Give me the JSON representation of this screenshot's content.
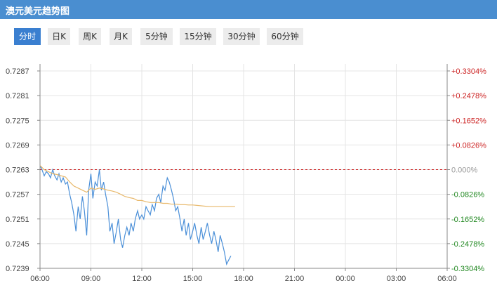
{
  "header": {
    "title": "澳元美元趋势图"
  },
  "tabs": [
    {
      "label": "分时",
      "active": true
    },
    {
      "label": "日K",
      "active": false
    },
    {
      "label": "周K",
      "active": false
    },
    {
      "label": "月K",
      "active": false
    },
    {
      "label": "5分钟",
      "active": false
    },
    {
      "label": "15分钟",
      "active": false
    },
    {
      "label": "30分钟",
      "active": false
    },
    {
      "label": "60分钟",
      "active": false
    }
  ],
  "colors": {
    "header_bg": "#4a8ed0",
    "price_line": "#4a8fd8",
    "avg_line": "#e8b86a",
    "baseline": "#cc2222",
    "positive": "#cc2222",
    "negative": "#228822",
    "neutral": "#999999"
  },
  "chart_data": {
    "type": "line",
    "title": "",
    "xlabel": "",
    "ylabel": "",
    "ylim": [
      0.7239,
      0.7287
    ],
    "grid": true,
    "baseline": 0.7263,
    "x_ticks": [
      "06:00",
      "09:00",
      "12:00",
      "15:00",
      "18:00",
      "21:00",
      "00:00",
      "03:00",
      "06:00"
    ],
    "y_ticks_left": [
      "0.7287",
      "0.7281",
      "0.7275",
      "0.7269",
      "0.7263",
      "0.7257",
      "0.7251",
      "0.7245",
      "0.7239"
    ],
    "y_ticks_right": [
      {
        "label": "+0.3304%",
        "sign": "positive"
      },
      {
        "label": "+0.2478%",
        "sign": "positive"
      },
      {
        "label": "+0.1652%",
        "sign": "positive"
      },
      {
        "label": "+0.0826%",
        "sign": "positive"
      },
      {
        "label": "0.000%",
        "sign": "neutral"
      },
      {
        "label": "-0.0826%",
        "sign": "negative"
      },
      {
        "label": "-0.1652%",
        "sign": "negative"
      },
      {
        "label": "-0.2478%",
        "sign": "negative"
      },
      {
        "label": "-0.3304%",
        "sign": "negative"
      }
    ],
    "series": [
      {
        "key": "price",
        "x": [
          "06:00",
          "06:07",
          "06:15",
          "06:22",
          "06:30",
          "06:37",
          "06:45",
          "06:52",
          "07:00",
          "07:07",
          "07:15",
          "07:22",
          "07:30",
          "07:37",
          "07:45",
          "07:52",
          "08:00",
          "08:07",
          "08:15",
          "08:22",
          "08:30",
          "08:37",
          "08:45",
          "08:52",
          "09:00",
          "09:07",
          "09:15",
          "09:22",
          "09:30",
          "09:37",
          "09:45",
          "09:52",
          "10:00",
          "10:07",
          "10:15",
          "10:22",
          "10:30",
          "10:37",
          "10:45",
          "10:52",
          "11:00",
          "11:07",
          "11:15",
          "11:22",
          "11:30",
          "11:37",
          "11:45",
          "11:52",
          "12:00",
          "12:07",
          "12:15",
          "12:22",
          "12:30",
          "12:37",
          "12:45",
          "12:52",
          "13:00",
          "13:07",
          "13:15",
          "13:22",
          "13:30",
          "13:37",
          "13:45",
          "13:52",
          "14:00",
          "14:07",
          "14:15",
          "14:22",
          "14:30",
          "14:37",
          "14:45",
          "14:52",
          "15:00",
          "15:07",
          "15:15",
          "15:22",
          "15:30",
          "15:37",
          "15:45",
          "15:52",
          "16:00",
          "16:07",
          "16:15",
          "16:22",
          "16:30",
          "16:37",
          "16:45",
          "16:52",
          "17:00",
          "17:07",
          "17:15"
        ],
        "y": [
          0.7264,
          0.7263,
          0.72615,
          0.72625,
          0.7262,
          0.7261,
          0.7263,
          0.72615,
          0.72605,
          0.7262,
          0.726,
          0.7261,
          0.72595,
          0.726,
          0.7257,
          0.7255,
          0.7252,
          0.7248,
          0.7254,
          0.7251,
          0.72565,
          0.7253,
          0.7247,
          0.7258,
          0.7262,
          0.7256,
          0.726,
          0.7259,
          0.7263,
          0.7258,
          0.726,
          0.7257,
          0.7254,
          0.7248,
          0.725,
          0.7245,
          0.7248,
          0.7251,
          0.7246,
          0.7244,
          0.7247,
          0.7249,
          0.7247,
          0.725,
          0.7248,
          0.7251,
          0.7253,
          0.7251,
          0.7252,
          0.7251,
          0.7254,
          0.7253,
          0.7252,
          0.72545,
          0.7253,
          0.7256,
          0.7257,
          0.7255,
          0.7259,
          0.7258,
          0.7261,
          0.726,
          0.7258,
          0.7256,
          0.7253,
          0.7254,
          0.7251,
          0.7248,
          0.7251,
          0.7247,
          0.725,
          0.7246,
          0.7248,
          0.725,
          0.7247,
          0.7245,
          0.7249,
          0.7246,
          0.7248,
          0.725,
          0.7247,
          0.7245,
          0.7248,
          0.7246,
          0.7243,
          0.7247,
          0.7245,
          0.7243,
          0.724,
          0.7241,
          0.7242
        ]
      },
      {
        "key": "average",
        "x": [
          "06:00",
          "06:15",
          "06:30",
          "06:45",
          "07:00",
          "07:15",
          "07:30",
          "07:45",
          "08:00",
          "08:15",
          "08:30",
          "08:45",
          "09:00",
          "09:15",
          "09:30",
          "09:45",
          "10:00",
          "10:15",
          "10:30",
          "10:45",
          "11:00",
          "11:15",
          "11:30",
          "11:45",
          "12:00",
          "12:15",
          "12:30",
          "12:45",
          "13:00",
          "13:15",
          "13:30",
          "13:45",
          "14:00",
          "14:15",
          "14:30",
          "14:45",
          "15:00",
          "15:15",
          "15:30",
          "15:45",
          "16:00",
          "16:15",
          "16:30",
          "16:45",
          "17:00",
          "17:15",
          "17:30"
        ],
        "y": [
          0.7264,
          0.7263,
          0.72625,
          0.7262,
          0.72618,
          0.72615,
          0.72612,
          0.726,
          0.7259,
          0.72585,
          0.7258,
          0.72575,
          0.72585,
          0.72582,
          0.72585,
          0.72583,
          0.7258,
          0.72578,
          0.72575,
          0.7257,
          0.72565,
          0.72562,
          0.7256,
          0.72555,
          0.72555,
          0.72552,
          0.7255,
          0.7255,
          0.7255,
          0.72548,
          0.72548,
          0.72546,
          0.72546,
          0.72545,
          0.72545,
          0.72544,
          0.72544,
          0.72543,
          0.72542,
          0.72541,
          0.7254,
          0.7254,
          0.7254,
          0.7254,
          0.7254,
          0.7254,
          0.7254
        ]
      }
    ]
  }
}
